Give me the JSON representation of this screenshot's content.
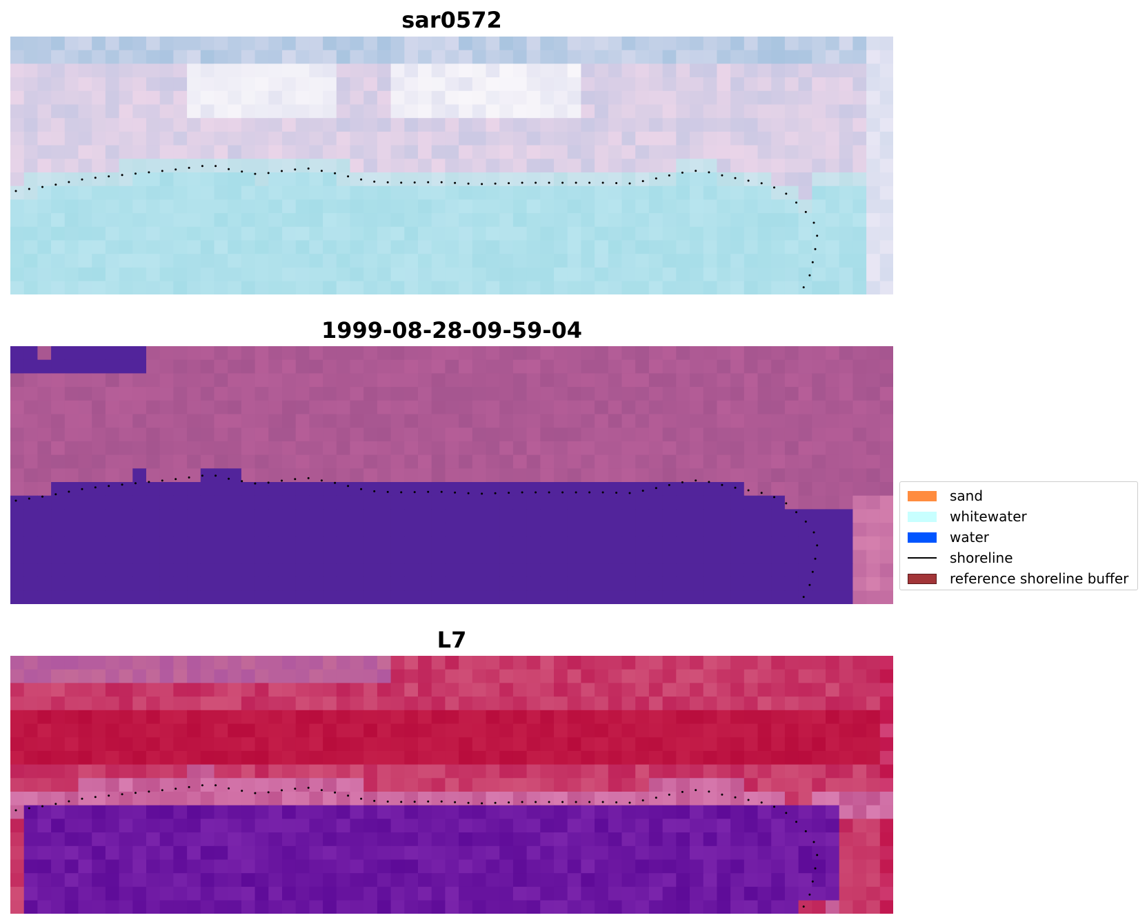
{
  "panels": [
    {
      "title": "sar0572",
      "style": "rgb-light"
    },
    {
      "title": "1999-08-28-09-59-04",
      "style": "classified"
    },
    {
      "title": "L7",
      "style": "index"
    }
  ],
  "legend": {
    "placement": "right",
    "items": [
      {
        "label": "sand",
        "kind": "patch",
        "color": "#ff8c3f"
      },
      {
        "label": "whitewater",
        "kind": "patch",
        "color": "#c8ffff"
      },
      {
        "label": "water",
        "kind": "patch",
        "color": "#0055ff"
      },
      {
        "label": "shoreline",
        "kind": "line",
        "color": "#000000"
      },
      {
        "label": "reference shoreline buffer",
        "kind": "patch",
        "color": "#a23538"
      }
    ]
  },
  "colors": {
    "shoreline_dots": "#000000",
    "water_mask": "#52249b",
    "land_classified": "#ad5592",
    "index_high": "#c0123f",
    "index_low": "#6a12a0"
  }
}
